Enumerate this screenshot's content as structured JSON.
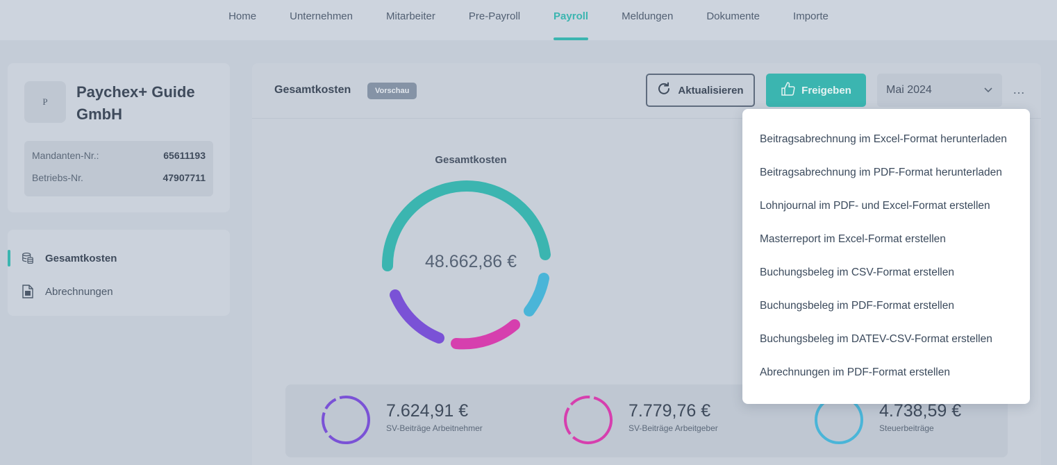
{
  "nav": {
    "items": [
      "Home",
      "Unternehmen",
      "Mitarbeiter",
      "Pre-Payroll",
      "Payroll",
      "Meldungen",
      "Dokumente",
      "Importe"
    ],
    "active": "Payroll"
  },
  "company": {
    "logo_text": "P",
    "name": "Paychex+ Guide GmbH",
    "mandant_label": "Mandanten-Nr.:",
    "mandant_value": "65611193",
    "betrieb_label": "Betriebs-Nr.",
    "betrieb_value": "47907711"
  },
  "side_menu": {
    "items": [
      {
        "label": "Gesamtkosten",
        "icon": "coins-icon",
        "active": true
      },
      {
        "label": "Abrechnungen",
        "icon": "document-icon",
        "active": false
      }
    ]
  },
  "main": {
    "title": "Gesamtkosten",
    "badge": "Vorschau",
    "refresh_label": "Aktualisieren",
    "release_label": "Freigeben",
    "month": "Mai 2024",
    "more": "…",
    "donut_title": "Gesamtkosten",
    "donut_value": "48.662,86 €"
  },
  "summary": [
    {
      "amount": "7.624,91 €",
      "label": "SV-Beiträge Arbeitnehmer",
      "color": "#7a52d6"
    },
    {
      "amount": "7.779,76 €",
      "label": "SV-Beiträge Arbeitgeber",
      "color": "#d63fae"
    },
    {
      "amount": "4.738,59 €",
      "label": "Steuerbeiträge",
      "color": "#4ab5d8"
    }
  ],
  "colors": {
    "accent": "#3bb5b0",
    "purple": "#7a52d6",
    "magenta": "#d63fae",
    "blue": "#4ab5d8"
  },
  "dropdown": {
    "items": [
      "Beitragsabrechnung im Excel-Format herunterladen",
      "Beitragsabrechnung im PDF-Format herunterladen",
      "Lohnjournal im PDF- und Excel-Format erstellen",
      "Masterreport im Excel-Format erstellen",
      "Buchungsbeleg im CSV-Format erstellen",
      "Buchungsbeleg im PDF-Format erstellen",
      "Buchungsbeleg im DATEV-CSV-Format erstellen",
      "Abrechnungen im PDF-Format erstellen"
    ]
  }
}
